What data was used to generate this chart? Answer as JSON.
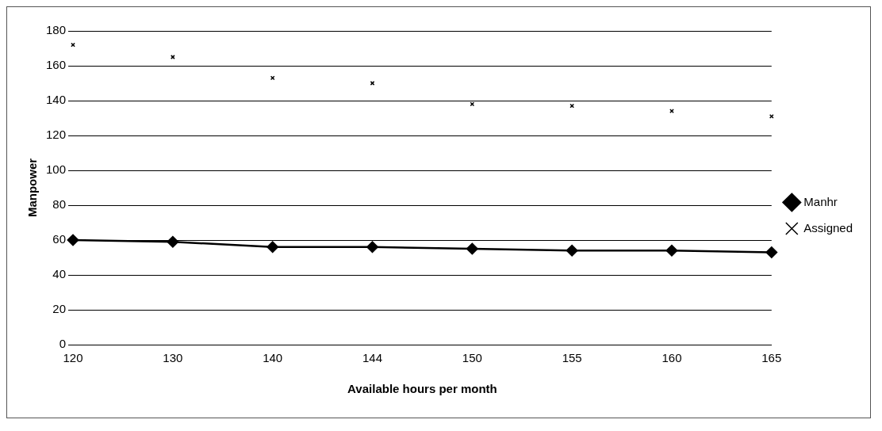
{
  "chart_data": {
    "type": "line",
    "xlabel": "Available hours per month",
    "ylabel": "Manpower",
    "categories": [
      "120",
      "130",
      "140",
      "144",
      "150",
      "155",
      "160",
      "165"
    ],
    "series": [
      {
        "name": "Manhr",
        "color": "#000000",
        "marker": "diamond",
        "values": [
          60,
          59,
          56,
          56,
          55,
          54,
          54,
          53
        ]
      },
      {
        "name": "Assigned",
        "type": "scatter",
        "color": "#000000",
        "marker": "cross",
        "values": [
          172,
          165,
          153,
          150,
          138,
          137,
          134,
          131
        ]
      }
    ],
    "ylim": [
      0,
      180
    ],
    "yticks": [
      0,
      20,
      40,
      60,
      80,
      100,
      120,
      140,
      160,
      180
    ],
    "grid": "y",
    "legend": "right"
  }
}
